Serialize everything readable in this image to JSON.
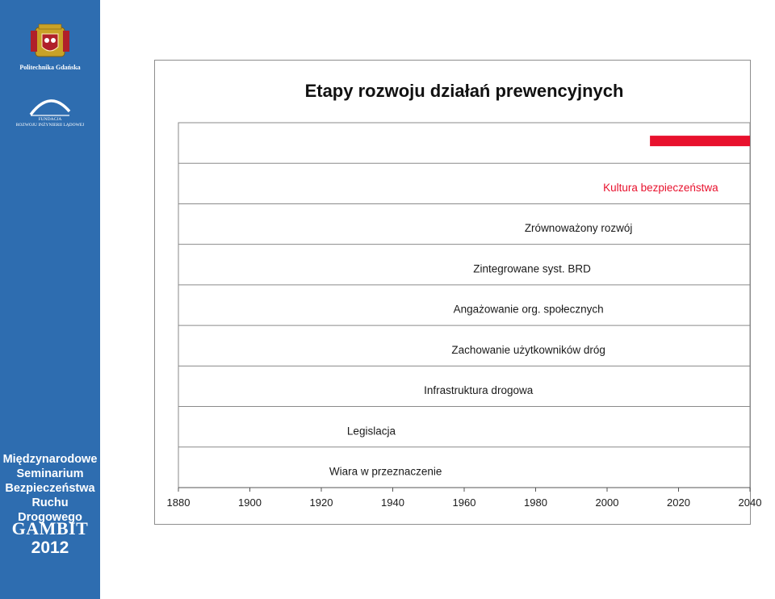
{
  "sidebar": {
    "university": "Politechnika Gdańska",
    "foundation_line1": "FUNDACJA",
    "foundation_line2": "ROZWOJU INŻYNIERII LĄDOWEJ",
    "seminar_lines": [
      "Międzynarodowe",
      "Seminarium",
      "Bezpieczeństwa",
      "Ruchu Drogowego"
    ],
    "event": "GAMBIT",
    "year": "2012",
    "colors": {
      "background": "#2e6db0",
      "text": "#ffffff"
    }
  },
  "chart_data": {
    "type": "bar",
    "title": "Etapy rozwoju działań prewencyjnych",
    "xlabel": "",
    "ylabel": "",
    "xlim": [
      1880,
      2040
    ],
    "xticks": [
      1880,
      1900,
      1920,
      1940,
      1960,
      1980,
      2000,
      2020,
      2040
    ],
    "grid": true,
    "orientation": "horizontal",
    "categories": [
      "Wiara w przeznaczenie",
      "Legislacja",
      "Infrastruktura drogowa",
      "Zachowanie użytkowników dróg",
      "Angażowanie org. społecznych",
      "Zintegrowane syst. BRD",
      "Zrównoważony rozwój",
      "Kultura bezpieczeństwa",
      ""
    ],
    "label_centers": [
      1938,
      1934,
      1964,
      1978,
      1978,
      1979,
      1992,
      2015
    ],
    "bars": [
      {
        "row": 8,
        "start": 2012,
        "end": 2040,
        "color": "#e8112d"
      }
    ],
    "label_colors": {
      "default": "#1a1a1a",
      "highlight": "#e8112d"
    },
    "highlight_index": 7
  }
}
